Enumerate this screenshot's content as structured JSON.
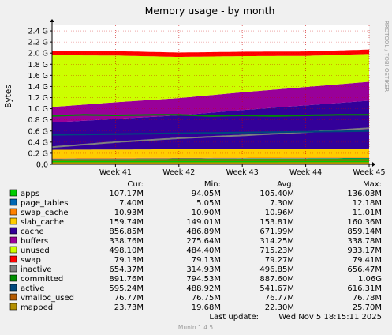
{
  "chart_data": {
    "type": "area",
    "title": "Memory usage - by month",
    "ylabel": "Bytes",
    "watermark": "RRDTOOL / TOBI OETIKER",
    "x_ticks": [
      "Week 41",
      "Week 42",
      "Week 43",
      "Week 44",
      "Week 45"
    ],
    "y_ticks": [
      "0.0",
      "0.2 G",
      "0.4 G",
      "0.6 G",
      "0.8 G",
      "1.0 G",
      "1.2 G",
      "1.4 G",
      "1.6 G",
      "1.8 G",
      "2.0 G",
      "2.2 G",
      "2.4 G"
    ],
    "ylim": [
      0,
      2.5
    ],
    "x_range": [
      0,
      5
    ],
    "grid": true,
    "legend_header": {
      "cur": "Cur:",
      "min": "Min:",
      "avg": "Avg:",
      "max": "Max:"
    },
    "series": [
      {
        "name": "apps",
        "color": "#00cc00",
        "cur": "107.17M",
        "min": "94.05M",
        "avg": "105.40M",
        "max": "136.03M",
        "kind": "stack",
        "points": [
          [
            0,
            0.094
          ],
          [
            5,
            0.107
          ]
        ]
      },
      {
        "name": "page_tables",
        "color": "#0066b3",
        "cur": "7.40M",
        "min": "5.05M",
        "avg": "7.30M",
        "max": "12.18M",
        "kind": "stack",
        "points": [
          [
            0,
            0.007
          ],
          [
            5,
            0.007
          ]
        ]
      },
      {
        "name": "swap_cache",
        "color": "#ff8000",
        "cur": "10.93M",
        "min": "10.90M",
        "avg": "10.96M",
        "max": "11.01M",
        "kind": "stack",
        "points": [
          [
            0,
            0.011
          ],
          [
            5,
            0.011
          ]
        ]
      },
      {
        "name": "slab_cache",
        "color": "#ffcc00",
        "cur": "159.74M",
        "min": "149.01M",
        "avg": "153.81M",
        "max": "160.36M",
        "kind": "stack",
        "points": [
          [
            0,
            0.15
          ],
          [
            5,
            0.16
          ]
        ]
      },
      {
        "name": "cache",
        "color": "#330099",
        "cur": "856.85M",
        "min": "486.89M",
        "avg": "671.99M",
        "max": "859.14M",
        "kind": "stack",
        "points": [
          [
            0,
            0.49
          ],
          [
            1,
            0.55
          ],
          [
            2,
            0.61
          ],
          [
            3,
            0.7
          ],
          [
            4,
            0.78
          ],
          [
            5,
            0.86
          ]
        ]
      },
      {
        "name": "buffers",
        "color": "#990099",
        "cur": "338.76M",
        "min": "275.64M",
        "avg": "314.25M",
        "max": "338.78M",
        "kind": "stack",
        "points": [
          [
            0,
            0.28
          ],
          [
            1,
            0.3
          ],
          [
            2,
            0.31
          ],
          [
            3,
            0.32
          ],
          [
            4,
            0.33
          ],
          [
            5,
            0.34
          ]
        ]
      },
      {
        "name": "unused",
        "color": "#ccff00",
        "cur": "498.10M",
        "min": "484.40M",
        "avg": "715.23M",
        "max": "933.17M",
        "kind": "stack",
        "points": [
          [
            0,
            0.93
          ],
          [
            1,
            0.84
          ],
          [
            2,
            0.74
          ],
          [
            3,
            0.65
          ],
          [
            4,
            0.56
          ],
          [
            5,
            0.5
          ]
        ]
      },
      {
        "name": "swap",
        "color": "#ff0000",
        "cur": "79.13M",
        "min": "79.13M",
        "avg": "79.27M",
        "max": "79.41M",
        "kind": "stack",
        "points": [
          [
            0,
            0.079
          ],
          [
            5,
            0.079
          ]
        ]
      },
      {
        "name": "inactive",
        "color": "#808080",
        "cur": "654.37M",
        "min": "314.93M",
        "avg": "496.85M",
        "max": "656.47M",
        "kind": "line",
        "points": [
          [
            0,
            0.31
          ],
          [
            1,
            0.4
          ],
          [
            2,
            0.47
          ],
          [
            3,
            0.52
          ],
          [
            4,
            0.58
          ],
          [
            5,
            0.65
          ]
        ]
      },
      {
        "name": "committed",
        "color": "#008f00",
        "cur": "891.76M",
        "min": "794.53M",
        "avg": "887.60M",
        "max": "1.06G",
        "kind": "line",
        "points": [
          [
            0,
            0.87
          ],
          [
            0.5,
            0.89
          ],
          [
            1.0,
            0.88
          ],
          [
            1.6,
            0.89
          ],
          [
            2.0,
            0.89
          ],
          [
            2.5,
            0.87
          ],
          [
            3.0,
            0.88
          ],
          [
            3.5,
            0.87
          ],
          [
            4.0,
            0.88
          ],
          [
            4.5,
            0.89
          ],
          [
            5,
            0.89
          ]
        ]
      },
      {
        "name": "active",
        "color": "#00487d",
        "cur": "595.24M",
        "min": "488.92M",
        "avg": "541.67M",
        "max": "616.31M",
        "kind": "line",
        "points": [
          [
            0,
            0.53
          ],
          [
            5,
            0.6
          ]
        ]
      },
      {
        "name": "vmalloc_used",
        "color": "#b35a00",
        "cur": "76.77M",
        "min": "76.75M",
        "avg": "76.77M",
        "max": "76.78M",
        "kind": "line",
        "points": [
          [
            0,
            0.077
          ],
          [
            5,
            0.077
          ]
        ]
      },
      {
        "name": "mapped",
        "color": "#b38f00",
        "cur": "23.73M",
        "min": "19.68M",
        "avg": "22.30M",
        "max": "25.70M",
        "kind": "line",
        "points": [
          [
            0,
            0.022
          ],
          [
            5,
            0.024
          ]
        ]
      }
    ],
    "last_update_label": "Last update:",
    "last_update": "Wed Nov  5 18:15:11 2025",
    "footer": "Munin 1.4.5"
  }
}
